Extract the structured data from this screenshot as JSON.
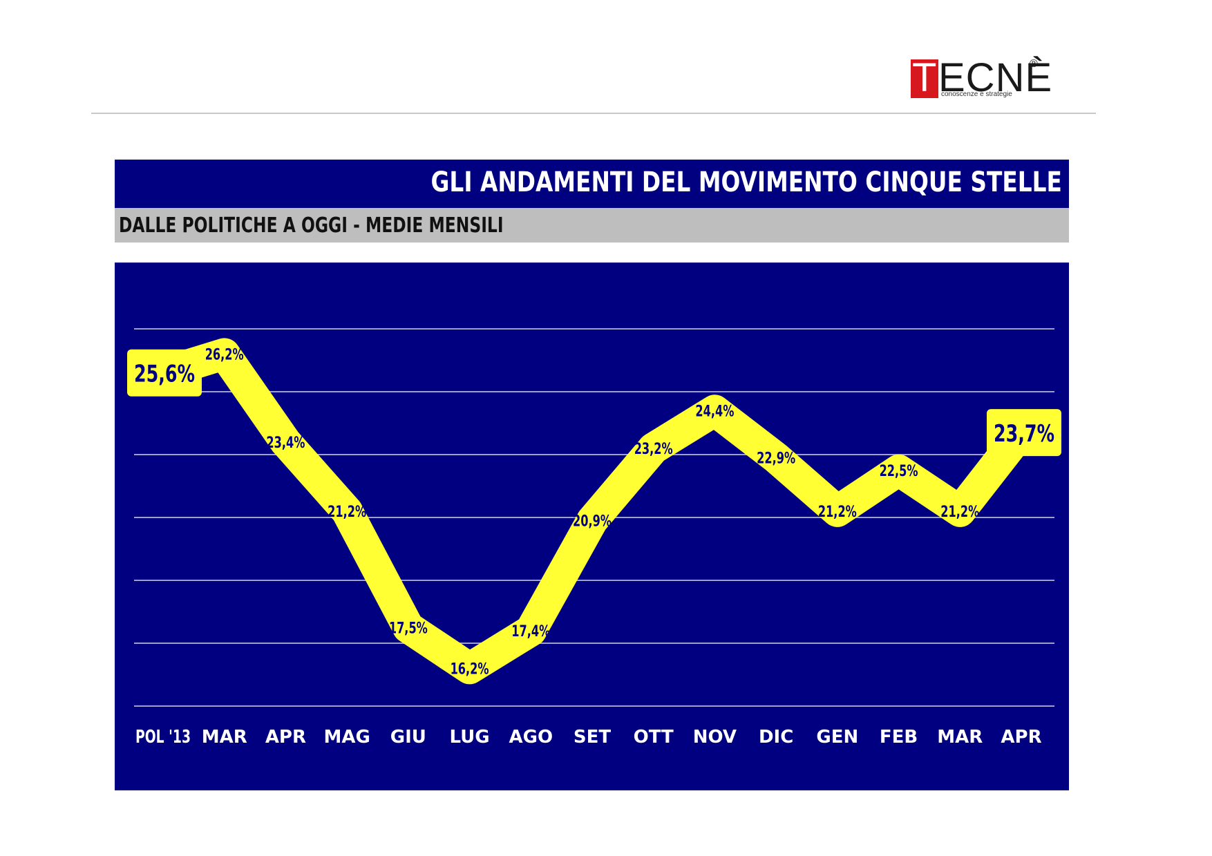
{
  "logo": {
    "name_first": "T",
    "name_rest": "ECNÈ",
    "registered": "®",
    "tagline": "conoscenze e strategie",
    "colors": {
      "box": "#d7191f",
      "text": "#1a1a1a"
    }
  },
  "header": {
    "title": "GLI ANDAMENTI DEL MOVIMENTO CINQUE STELLE",
    "subtitle": "DALLE POLITICHE A OGGI - MEDIE MENSILI"
  },
  "chart_data": {
    "type": "line",
    "categories": [
      "POL '13",
      "MAR",
      "APR",
      "MAG",
      "GIU",
      "LUG",
      "AGO",
      "SET",
      "OTT",
      "NOV",
      "DIC",
      "GEN",
      "FEB",
      "MAR",
      "APR"
    ],
    "values": [
      25.6,
      26.2,
      23.4,
      21.2,
      17.5,
      16.2,
      17.4,
      20.9,
      23.2,
      24.4,
      22.9,
      21.2,
      22.5,
      21.2,
      23.7
    ],
    "data_labels": [
      "25,6%",
      "26,2%",
      "23,4%",
      "21,2%",
      "17,5%",
      "16,2%",
      "17,4%",
      "20,9%",
      "23,2%",
      "24,4%",
      "22,9%",
      "21,2%",
      "22,5%",
      "21,2%",
      "23,7%"
    ],
    "highlighted_points": [
      0,
      14
    ],
    "ylim": [
      15,
      27
    ],
    "grid": true,
    "title": "",
    "xlabel": "",
    "ylabel": "",
    "colors": {
      "background": "#000080",
      "line": "#ffff33",
      "label_text": "#000080",
      "tick_text": "#ffffff",
      "grid": "#a0a0c8"
    }
  }
}
